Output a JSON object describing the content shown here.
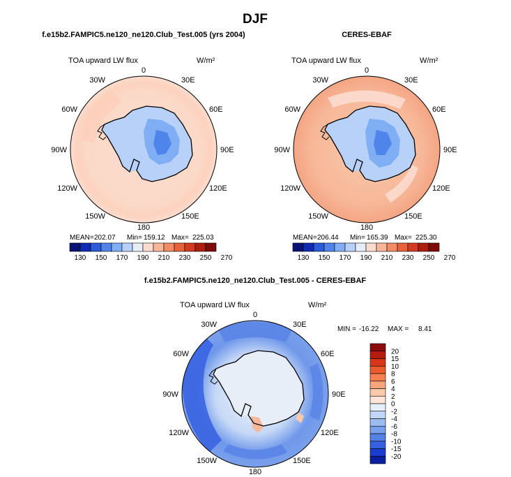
{
  "title": "DJF",
  "chart_data": [
    {
      "type": "heatmap",
      "projection": "south-polar-stereographic",
      "title": "f.e15b2.FAMPIC5.ne120_ne120.Club_Test.005 (yrs 2004)",
      "variable": "TOA upward LW flux",
      "units": "W/m²",
      "lon_labels": [
        "0",
        "30E",
        "60E",
        "90E",
        "120E",
        "150E",
        "180",
        "150W",
        "120W",
        "90W",
        "60W",
        "30W"
      ],
      "stats": {
        "mean_label": "MEAN=",
        "mean": "202.07",
        "min_label": "Min=",
        "min": "159.12",
        "max_label": "Max=",
        "max": "225.03"
      },
      "colorbar": {
        "levels": [
          "130",
          "150",
          "170",
          "190",
          "210",
          "230",
          "250",
          "270"
        ],
        "colors": [
          "#0a1273",
          "#0f2bb4",
          "#2a5bd8",
          "#4f84ea",
          "#80aef4",
          "#b7d1f8",
          "#e8eef7",
          "#fbdccf",
          "#f8b79a",
          "#f28c65",
          "#e8623c",
          "#d23b20",
          "#ae1e10",
          "#7e0c0a"
        ]
      }
    },
    {
      "type": "heatmap",
      "projection": "south-polar-stereographic",
      "title": "CERES-EBAF",
      "variable": "TOA upward LW flux",
      "units": "W/m²",
      "lon_labels": [
        "0",
        "30E",
        "60E",
        "90E",
        "120E",
        "150E",
        "180",
        "150W",
        "120W",
        "90W",
        "60W",
        "30W"
      ],
      "stats": {
        "mean_label": "MEAN=",
        "mean": "206.44",
        "min_label": "Min=",
        "min": "165.39",
        "max_label": "Max=",
        "max": "225.30"
      },
      "colorbar": {
        "levels": [
          "130",
          "150",
          "170",
          "190",
          "210",
          "230",
          "250",
          "270"
        ],
        "colors": [
          "#0a1273",
          "#0f2bb4",
          "#2a5bd8",
          "#4f84ea",
          "#80aef4",
          "#b7d1f8",
          "#e8eef7",
          "#fbdccf",
          "#f8b79a",
          "#f28c65",
          "#e8623c",
          "#d23b20",
          "#ae1e10",
          "#7e0c0a"
        ]
      }
    },
    {
      "type": "heatmap",
      "projection": "south-polar-stereographic",
      "title": "f.e15b2.FAMPIC5.ne120_ne120.Club_Test.005 - CERES-EBAF",
      "variable": "TOA upward LW flux",
      "units": "W/m²",
      "lon_labels": [
        "0",
        "30E",
        "60E",
        "90E",
        "120E",
        "150E",
        "180",
        "150W",
        "120W",
        "90W",
        "60W",
        "30W"
      ],
      "stats": {
        "min_label": "MIN =",
        "min": "-16.22",
        "max_label": "MAX =",
        "max": "8.41"
      },
      "colorbar": {
        "levels": [
          "20",
          "15",
          "10",
          "8",
          "6",
          "4",
          "2",
          "0",
          "-2",
          "-4",
          "-6",
          "-8",
          "-10",
          "-15",
          "-20"
        ],
        "colors": [
          "#8a0c0a",
          "#b51c0d",
          "#d8361a",
          "#ec5a2e",
          "#f6804f",
          "#f9a57c",
          "#fbc8aa",
          "#fbe6d9",
          "#e6eefa",
          "#c2d6f5",
          "#9cbcf0",
          "#7aa0eb",
          "#5580e6",
          "#3560e0",
          "#1a3ccf",
          "#0a1f9e"
        ]
      }
    }
  ]
}
